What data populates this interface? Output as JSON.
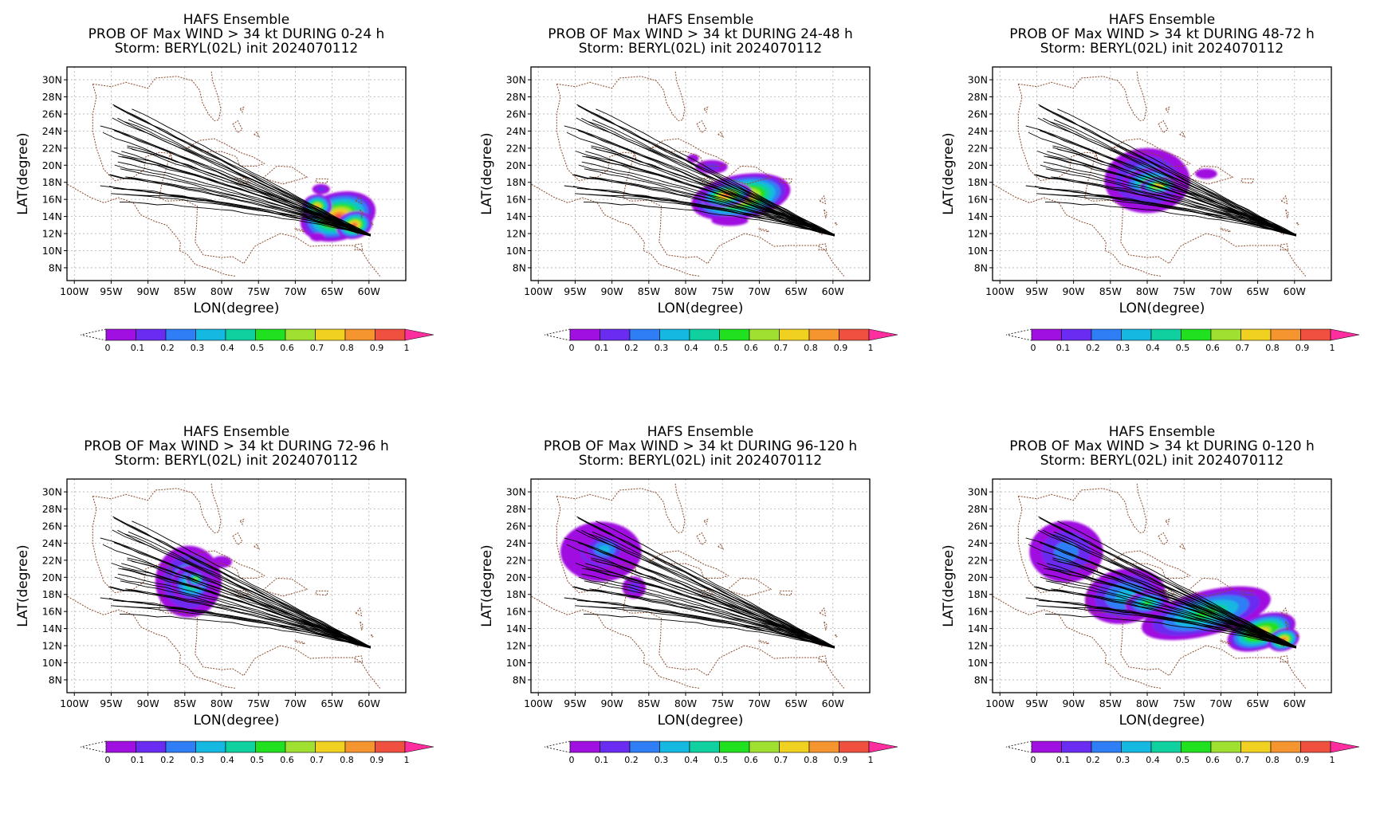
{
  "figure": {
    "lon_ticks": [
      "100W",
      "95W",
      "90W",
      "85W",
      "80W",
      "75W",
      "70W",
      "65W",
      "60W"
    ],
    "lat_ticks": [
      "30N",
      "28N",
      "26N",
      "24N",
      "22N",
      "20N",
      "18N",
      "16N",
      "14N",
      "12N",
      "10N",
      "8N"
    ],
    "xlabel": "LON(degree)",
    "ylabel": "LAT(degree)",
    "lon_range": [
      -101,
      -55
    ],
    "lat_range": [
      6.5,
      31.5
    ]
  },
  "colorbar": {
    "labels": [
      "0",
      "0.1",
      "0.2",
      "0.3",
      "0.4",
      "0.5",
      "0.6",
      "0.7",
      "0.8",
      "0.9",
      "1"
    ],
    "colors": [
      "#a010e0",
      "#6a2cf0",
      "#2f7ef5",
      "#15b8e0",
      "#10d0a0",
      "#20e020",
      "#a0e030",
      "#f0d020",
      "#f59530",
      "#f05040"
    ],
    "over_color": "#ff2e9e",
    "under_color": "#ffffff"
  },
  "colors": {
    "coast": "#8b4a2b",
    "track": "#000000",
    "grid": "#b0b0b0"
  },
  "panels": [
    {
      "title": "HAFS Ensemble",
      "subtitle": "PROB OF Max WIND > 34 kt DURING  0-24 h",
      "storm": "Storm: BERYL(02L) init 2024070112",
      "blobs": [
        {
          "lon": -64.2,
          "lat": 14.0,
          "rlon": 5.2,
          "rlat": 2.8,
          "p": 0.98,
          "rot": -15
        },
        {
          "lon": -62.0,
          "lat": 13.0,
          "rlon": 2.5,
          "rlat": 1.6,
          "p": 0.95,
          "rot": -15
        },
        {
          "lon": -67.0,
          "lat": 15.2,
          "rlon": 2.0,
          "rlat": 1.4,
          "p": 0.9,
          "rot": 0
        },
        {
          "lon": -66.5,
          "lat": 17.2,
          "rlon": 1.2,
          "rlat": 0.6,
          "p": 0.2,
          "rot": 0
        },
        {
          "lon": -67.0,
          "lat": 11.6,
          "rlon": 1.0,
          "rlat": 0.5,
          "p": 0.12,
          "rot": 0
        }
      ]
    },
    {
      "title": "HAFS Ensemble",
      "subtitle": "PROB OF Max WIND > 34 kt DURING 24-48 h",
      "storm": "Storm: BERYL(02L) init 2024070112",
      "blobs": [
        {
          "lon": -72.5,
          "lat": 16.3,
          "rlon": 6.8,
          "rlat": 2.6,
          "p": 0.95,
          "rot": -10
        },
        {
          "lon": -74.5,
          "lat": 16.5,
          "rlon": 3.5,
          "rlat": 1.4,
          "p": 0.99,
          "rot": -10
        },
        {
          "lon": -76.5,
          "lat": 19.8,
          "rlon": 2.2,
          "rlat": 0.8,
          "p": 0.15,
          "rot": 0
        },
        {
          "lon": -74.0,
          "lat": 13.5,
          "rlon": 2.5,
          "rlat": 0.6,
          "p": 0.12,
          "rot": 0
        },
        {
          "lon": -79.0,
          "lat": 20.8,
          "rlon": 0.8,
          "rlat": 0.5,
          "p": 0.1,
          "rot": 0
        }
      ]
    },
    {
      "title": "HAFS Ensemble",
      "subtitle": "PROB OF Max WIND > 34 kt DURING 48-72 h",
      "storm": "Storm: BERYL(02L) init 2024070112",
      "blobs": [
        {
          "lon": -80.0,
          "lat": 18.2,
          "rlon": 5.8,
          "rlat": 3.8,
          "p": 0.4,
          "rot": 0
        },
        {
          "lon": -79.5,
          "lat": 18.0,
          "rlon": 4.0,
          "rlat": 1.7,
          "p": 0.7,
          "rot": -5
        },
        {
          "lon": -78.5,
          "lat": 17.6,
          "rlon": 2.5,
          "rlat": 1.0,
          "p": 0.85,
          "rot": -5
        },
        {
          "lon": -72.0,
          "lat": 19.0,
          "rlon": 1.5,
          "rlat": 0.6,
          "p": 0.12,
          "rot": 0
        }
      ]
    },
    {
      "title": "HAFS Ensemble",
      "subtitle": "PROB OF Max WIND > 34 kt DURING 72-96 h",
      "storm": "Storm: BERYL(02L) init 2024070112",
      "blobs": [
        {
          "lon": -84.5,
          "lat": 19.5,
          "rlon": 4.5,
          "rlat": 4.2,
          "p": 0.35,
          "rot": 0
        },
        {
          "lon": -84.0,
          "lat": 19.2,
          "rlon": 2.8,
          "rlat": 2.2,
          "p": 0.6,
          "rot": 0
        },
        {
          "lon": -83.5,
          "lat": 19.8,
          "rlon": 1.3,
          "rlat": 1.0,
          "p": 0.7,
          "rot": 0
        },
        {
          "lon": -80.0,
          "lat": 21.8,
          "rlon": 1.4,
          "rlat": 0.7,
          "p": 0.12,
          "rot": 0
        }
      ]
    },
    {
      "title": "HAFS Ensemble",
      "subtitle": "PROB OF Max WIND > 34 kt DURING 96-120 h",
      "storm": "Storm: BERYL(02L) init 2024070112",
      "blobs": [
        {
          "lon": -91.5,
          "lat": 23.0,
          "rlon": 5.5,
          "rlat": 3.5,
          "p": 0.2,
          "rot": 0
        },
        {
          "lon": -91.0,
          "lat": 23.3,
          "rlon": 3.0,
          "rlat": 1.8,
          "p": 0.4,
          "rot": 0
        },
        {
          "lon": -87.0,
          "lat": 18.8,
          "rlon": 1.6,
          "rlat": 1.3,
          "p": 0.18,
          "rot": 0
        }
      ]
    },
    {
      "title": "HAFS Ensemble",
      "subtitle": "PROB OF Max WIND > 34 kt DURING 0-120 h",
      "storm": "Storm: BERYL(02L) init 2024070112",
      "blobs": [
        {
          "lon": -91.0,
          "lat": 23.0,
          "rlon": 5.0,
          "rlat": 3.6,
          "p": 0.25,
          "rot": 0
        },
        {
          "lon": -83.0,
          "lat": 17.8,
          "rlon": 5.5,
          "rlat": 3.2,
          "p": 0.35,
          "rot": -10
        },
        {
          "lon": -72.0,
          "lat": 15.8,
          "rlon": 9.0,
          "rlat": 2.6,
          "p": 0.6,
          "rot": -14
        },
        {
          "lon": -64.5,
          "lat": 13.6,
          "rlon": 4.8,
          "rlat": 2.0,
          "p": 0.92,
          "rot": -18
        },
        {
          "lon": -61.5,
          "lat": 12.7,
          "rlon": 2.2,
          "rlat": 1.3,
          "p": 0.98,
          "rot": -18
        },
        {
          "lon": -80.0,
          "lat": 17.0,
          "rlon": 3.0,
          "rlat": 1.4,
          "p": 0.55,
          "rot": -10
        }
      ]
    }
  ]
}
